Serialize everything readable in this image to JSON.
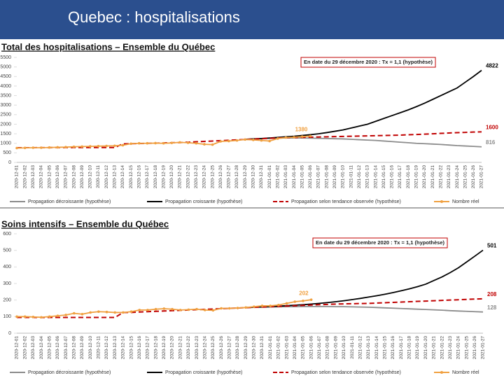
{
  "slide_title": "Quebec : hospitalisations",
  "chart_data": [
    {
      "type": "line",
      "title": "Total des hospitalisations – Ensemble du Québec",
      "annotation": "En date du 29 décembre 2020 : Tx = 1,1 (hypothèse)",
      "categories": [
        "2020-12-01",
        "2020-12-02",
        "2020-12-03",
        "2020-12-04",
        "2020-12-05",
        "2020-12-06",
        "2020-12-07",
        "2020-12-08",
        "2020-12-09",
        "2020-12-10",
        "2020-12-11",
        "2020-12-12",
        "2020-12-13",
        "2020-12-14",
        "2020-12-15",
        "2020-12-16",
        "2020-12-17",
        "2020-12-18",
        "2020-12-19",
        "2020-12-20",
        "2020-12-21",
        "2020-12-22",
        "2020-12-23",
        "2020-12-24",
        "2020-12-25",
        "2020-12-26",
        "2020-12-27",
        "2020-12-28",
        "2020-12-29",
        "2020-12-30",
        "2020-12-31",
        "2021-01-01",
        "2021-01-02",
        "2021-01-03",
        "2021-01-04",
        "2021-01-05",
        "2021-01-06",
        "2021-01-07",
        "2021-01-08",
        "2021-01-09",
        "2021-01-10",
        "2021-01-11",
        "2021-01-12",
        "2021-01-13",
        "2021-01-14",
        "2021-01-15",
        "2021-01-16",
        "2021-01-17",
        "2021-01-18",
        "2021-01-19",
        "2021-01-20",
        "2021-01-21",
        "2021-01-22",
        "2021-01-23",
        "2021-01-24",
        "2021-01-25",
        "2021-01-26",
        "2021-01-27"
      ],
      "ylim": [
        0,
        5500
      ],
      "yticks": [
        0,
        500,
        1000,
        1500,
        2000,
        2500,
        3000,
        3500,
        4000,
        4500,
        5000,
        5500
      ],
      "grid": false,
      "series": [
        {
          "name": "Propagation décroissante (hypothèse)",
          "color": "#8c8c8c",
          "dash": false,
          "marker": false,
          "values": [
            null,
            null,
            null,
            null,
            null,
            null,
            null,
            null,
            null,
            null,
            null,
            null,
            null,
            null,
            null,
            null,
            null,
            null,
            null,
            null,
            null,
            null,
            null,
            null,
            null,
            null,
            null,
            null,
            1210,
            1230,
            1250,
            1260,
            1270,
            1280,
            1280,
            1280,
            1270,
            1260,
            1250,
            1240,
            1230,
            1210,
            1190,
            1170,
            1150,
            1120,
            1090,
            1060,
            1030,
            1000,
            980,
            960,
            940,
            910,
            880,
            860,
            840,
            816
          ]
        },
        {
          "name": "Propagation croissante (hypothèse)",
          "color": "#000000",
          "dash": false,
          "marker": false,
          "values": [
            null,
            null,
            null,
            null,
            null,
            null,
            null,
            null,
            null,
            null,
            null,
            null,
            null,
            null,
            null,
            null,
            null,
            null,
            null,
            null,
            null,
            null,
            null,
            null,
            null,
            null,
            null,
            null,
            1210,
            1230,
            1250,
            1280,
            1310,
            1340,
            1370,
            1410,
            1450,
            1500,
            1560,
            1630,
            1700,
            1800,
            1900,
            2000,
            2150,
            2300,
            2450,
            2600,
            2750,
            2920,
            3100,
            3300,
            3500,
            3700,
            3900,
            4200,
            4500,
            4822
          ]
        },
        {
          "name": "Propagation selon tendance observée (hypothèse)",
          "color": "#c00000",
          "dash": true,
          "marker": false,
          "values": [
            770,
            770,
            770,
            775,
            775,
            780,
            780,
            780,
            780,
            780,
            780,
            780,
            780,
            970,
            980,
            990,
            1000,
            1010,
            1020,
            1030,
            1040,
            1060,
            1080,
            1100,
            1120,
            1140,
            1160,
            1180,
            1200,
            1220,
            1240,
            1260,
            1280,
            1290,
            1300,
            1310,
            1320,
            1330,
            1340,
            1350,
            1360,
            1370,
            1380,
            1390,
            1400,
            1410,
            1420,
            1430,
            1450,
            1460,
            1480,
            1500,
            1520,
            1540,
            1560,
            1570,
            1590,
            1600
          ]
        },
        {
          "name": "Nombre réel",
          "color": "#f0a040",
          "dash": false,
          "marker": true,
          "values": [
            750,
            760,
            770,
            770,
            780,
            790,
            800,
            820,
            830,
            840,
            850,
            860,
            870,
            900,
            980,
            1000,
            1000,
            1010,
            1000,
            1020,
            1050,
            1030,
            1000,
            950,
            930,
            1100,
            1120,
            1150,
            1200,
            1180,
            1150,
            1120,
            1250,
            1300,
            1320,
            1350,
            1380,
            null,
            null,
            null,
            null,
            null,
            null,
            null,
            null,
            null,
            null,
            null,
            null,
            null,
            null,
            null,
            null,
            null,
            null,
            null,
            null,
            null
          ]
        }
      ]
    },
    {
      "type": "line",
      "title": "Soins intensifs – Ensemble du Québec",
      "annotation": "En date du 29 décembre 2020 : Tx = 1,1 (hypothèse)",
      "categories": [
        "2020-12-01",
        "2020-12-02",
        "2020-12-03",
        "2020-12-04",
        "2020-12-05",
        "2020-12-06",
        "2020-12-07",
        "2020-12-08",
        "2020-12-09",
        "2020-12-10",
        "2020-12-11",
        "2020-12-12",
        "2020-12-13",
        "2020-12-14",
        "2020-12-15",
        "2020-12-16",
        "2020-12-17",
        "2020-12-18",
        "2020-12-19",
        "2020-12-20",
        "2020-12-21",
        "2020-12-22",
        "2020-12-23",
        "2020-12-24",
        "2020-12-25",
        "2020-12-26",
        "2020-12-27",
        "2020-12-28",
        "2020-12-29",
        "2020-12-30",
        "2020-12-31",
        "2021-01-01",
        "2021-01-02",
        "2021-01-03",
        "2021-01-04",
        "2021-01-05",
        "2021-01-06",
        "2021-01-07",
        "2021-01-08",
        "2021-01-09",
        "2021-01-10",
        "2021-01-11",
        "2021-01-12",
        "2021-01-13",
        "2021-01-14",
        "2021-01-15",
        "2021-01-16",
        "2021-01-17",
        "2021-01-18",
        "2021-01-19",
        "2021-01-20",
        "2021-01-21",
        "2021-01-22",
        "2021-01-23",
        "2021-01-24",
        "2021-01-25",
        "2021-01-26",
        "2021-01-27"
      ],
      "ylim": [
        0,
        600
      ],
      "yticks": [
        0,
        100,
        200,
        300,
        400,
        500,
        600
      ],
      "grid": false,
      "series": [
        {
          "name": "Propagation décroissante (hypothèse)",
          "color": "#8c8c8c",
          "dash": false,
          "marker": false,
          "values": [
            null,
            null,
            null,
            null,
            null,
            null,
            null,
            null,
            null,
            null,
            null,
            null,
            null,
            null,
            null,
            null,
            null,
            null,
            null,
            null,
            null,
            null,
            null,
            null,
            null,
            null,
            null,
            null,
            155,
            156,
            157,
            158,
            159,
            160,
            160,
            161,
            161,
            161,
            161,
            160,
            160,
            159,
            158,
            157,
            155,
            153,
            151,
            149,
            147,
            145,
            143,
            141,
            139,
            136,
            134,
            132,
            130,
            128
          ]
        },
        {
          "name": "Propagation croissante (hypothèse)",
          "color": "#000000",
          "dash": false,
          "marker": false,
          "values": [
            null,
            null,
            null,
            null,
            null,
            null,
            null,
            null,
            null,
            null,
            null,
            null,
            null,
            null,
            null,
            null,
            null,
            null,
            null,
            null,
            null,
            null,
            null,
            null,
            null,
            null,
            null,
            null,
            155,
            157,
            159,
            161,
            163,
            166,
            169,
            172,
            176,
            180,
            185,
            190,
            196,
            203,
            210,
            218,
            226,
            235,
            245,
            256,
            268,
            281,
            296,
            318,
            340,
            366,
            395,
            430,
            465,
            501
          ]
        },
        {
          "name": "Propagation selon tendance observée (hypothèse)",
          "color": "#c00000",
          "dash": true,
          "marker": false,
          "values": [
            95,
            95,
            95,
            95,
            95,
            95,
            95,
            95,
            95,
            95,
            95,
            95,
            95,
            125,
            125,
            128,
            130,
            132,
            134,
            136,
            138,
            140,
            142,
            144,
            146,
            148,
            150,
            152,
            154,
            156,
            158,
            160,
            162,
            164,
            166,
            168,
            170,
            172,
            174,
            176,
            177,
            178,
            179,
            180,
            182,
            184,
            186,
            188,
            190,
            192,
            194,
            196,
            198,
            200,
            202,
            204,
            206,
            208
          ]
        },
        {
          "name": "Nombre réel",
          "color": "#f0a040",
          "dash": false,
          "marker": true,
          "values": [
            100,
            100,
            98,
            96,
            100,
            105,
            110,
            120,
            115,
            125,
            130,
            128,
            125,
            125,
            130,
            140,
            140,
            145,
            148,
            145,
            140,
            142,
            145,
            140,
            138,
            150,
            150,
            152,
            155,
            160,
            165,
            165,
            170,
            180,
            190,
            195,
            202,
            null,
            null,
            null,
            null,
            null,
            null,
            null,
            null,
            null,
            null,
            null,
            null,
            null,
            null,
            null,
            null,
            null,
            null,
            null,
            null,
            null
          ]
        }
      ]
    }
  ]
}
